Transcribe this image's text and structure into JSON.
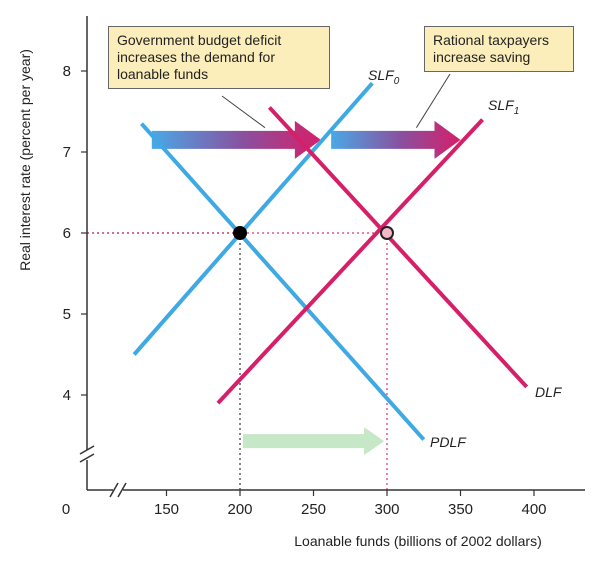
{
  "chart_data": {
    "type": "line",
    "title": "",
    "xlabel": "Loanable funds (billions of 2002 dollars)",
    "ylabel": "Real interest rate (percent per year)",
    "origin_label": "0",
    "xlim": [
      125,
      410
    ],
    "ylim": [
      3.3,
      8.5
    ],
    "x_ticks": [
      {
        "value": 150,
        "label": "150"
      },
      {
        "value": 200,
        "label": "200"
      },
      {
        "value": 250,
        "label": "250"
      },
      {
        "value": 300,
        "label": "300",
        "highlight": true
      },
      {
        "value": 350,
        "label": "350"
      },
      {
        "value": 400,
        "label": "400"
      }
    ],
    "y_ticks": [
      {
        "value": 4,
        "label": "4"
      },
      {
        "value": 5,
        "label": "5"
      },
      {
        "value": 6,
        "label": "6",
        "highlight": true
      },
      {
        "value": 7,
        "label": "7"
      },
      {
        "value": 8,
        "label": "8"
      }
    ],
    "axis_breaks": [
      "x",
      "y"
    ],
    "series": [
      {
        "name": "PDLF",
        "name_main": "PDLF",
        "name_sub": "",
        "color": "#3fa9e3",
        "points": [
          [
            133,
            7.35
          ],
          [
            325,
            3.45
          ]
        ]
      },
      {
        "name": "SLF0",
        "name_main": "SLF",
        "name_sub": "0",
        "color": "#3fa9e3",
        "points": [
          [
            128,
            4.5
          ],
          [
            290,
            7.85
          ]
        ]
      },
      {
        "name": "DLF",
        "name_main": "DLF",
        "name_sub": "",
        "color": "#d61f69",
        "points": [
          [
            220,
            7.55
          ],
          [
            395,
            4.1
          ]
        ]
      },
      {
        "name": "SLF1",
        "name_main": "SLF",
        "name_sub": "1",
        "color": "#d61f69",
        "points": [
          [
            185,
            3.9
          ],
          [
            365,
            7.4
          ]
        ]
      }
    ],
    "equilibria": [
      {
        "x": 200,
        "y": 6,
        "fill": "#000000",
        "stroke": "#000000",
        "guide_color": "#333333"
      },
      {
        "x": 300,
        "y": 6,
        "fill": "#f2b8c8",
        "stroke": "#222222",
        "guide_color": "#e0307a"
      }
    ],
    "arrows": [
      {
        "from": [
          140,
          7.15
        ],
        "to": [
          255,
          7.15
        ],
        "style": "gradient"
      },
      {
        "from": [
          262,
          7.15
        ],
        "to": [
          350,
          7.15
        ],
        "style": "gradient"
      },
      {
        "from": [
          202,
          3.43
        ],
        "to": [
          298,
          3.43
        ],
        "style": "light-green"
      }
    ],
    "annotations": [
      {
        "text_lines": [
          "Government budget deficit",
          "increases the demand for",
          "loanable funds"
        ],
        "pointer_to": [
          217,
          7.3
        ]
      },
      {
        "text_lines": [
          "Rational taxpayers",
          "increase saving"
        ],
        "pointer_to": [
          320,
          7.3
        ]
      }
    ]
  }
}
